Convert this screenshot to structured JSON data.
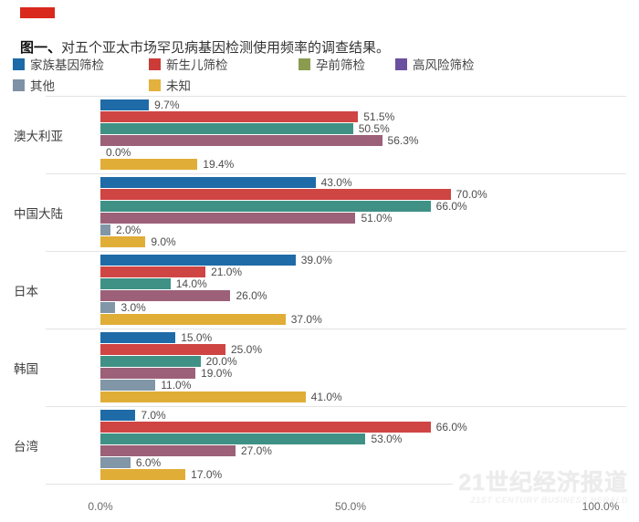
{
  "header": {
    "marker_color": "#d9291d",
    "title_prefix": "图一、",
    "title_text": "对五个亚太市场罕见病基因检测使用频率的调查结果。"
  },
  "legend": {
    "items": [
      {
        "label": "家族基因筛检",
        "swatch": "#1e6aa8"
      },
      {
        "label": "新生儿筛检",
        "swatch": "#cb3c38"
      },
      {
        "label": "孕前筛检",
        "swatch": "#8b9b50"
      },
      {
        "label": "高风险筛检",
        "swatch": "#6b509f"
      },
      {
        "label": "其他",
        "swatch": "#7e91a6"
      },
      {
        "label": "未知",
        "swatch": "#e3b13d"
      }
    ],
    "row1_offsets": [
      0,
      149,
      313,
      419
    ],
    "row2_offsets": [
      0,
      149
    ]
  },
  "chart_data": {
    "type": "bar",
    "orientation": "horizontal",
    "title": "对五个亚太市场罕见病基因检测使用频率的调查结果",
    "categories": [
      "澳大利亚",
      "中国大陆",
      "日本",
      "韩国",
      "台湾"
    ],
    "series": [
      {
        "name": "家族基因筛检",
        "color": "#1f6ba8",
        "values": [
          9.7,
          43.0,
          39.0,
          15.0,
          7.0
        ]
      },
      {
        "name": "新生儿筛检",
        "color": "#cf4543",
        "values": [
          51.5,
          70.0,
          21.0,
          25.0,
          66.0
        ]
      },
      {
        "name": "孕前筛检",
        "color": "#3f9185",
        "values": [
          50.5,
          66.0,
          14.0,
          20.0,
          53.0
        ]
      },
      {
        "name": "高风险筛检",
        "color": "#9c6078",
        "values": [
          56.3,
          51.0,
          26.0,
          19.0,
          27.0
        ]
      },
      {
        "name": "其他",
        "color": "#8196a7",
        "values": [
          0.0,
          2.0,
          3.0,
          11.0,
          6.0
        ]
      },
      {
        "name": "未知",
        "color": "#e0ad37",
        "values": [
          19.4,
          9.0,
          37.0,
          41.0,
          17.0
        ]
      }
    ],
    "value_label_suffix": "%",
    "xlabel": "",
    "ylabel": "",
    "xlim": [
      0,
      100
    ],
    "x_ticks": [
      {
        "label": "0.0%",
        "value": 0
      },
      {
        "label": "50.0%",
        "value": 50
      },
      {
        "label": "100.0%",
        "value": 100
      }
    ],
    "grid": false,
    "legend_position": "top"
  },
  "watermark": {
    "line1": "21世纪经济报道",
    "line2": "21ST CENTURY BUSINESS HERALD"
  }
}
